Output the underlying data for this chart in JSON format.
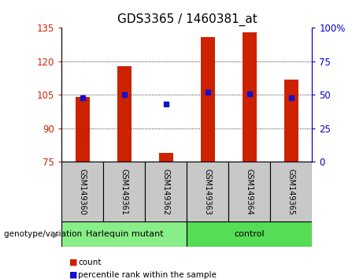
{
  "title": "GDS3365 / 1460381_at",
  "samples": [
    "GSM149360",
    "GSM149361",
    "GSM149362",
    "GSM149363",
    "GSM149364",
    "GSM149365"
  ],
  "count_values": [
    104,
    118,
    79,
    131,
    133,
    112
  ],
  "percentile_values": [
    48,
    50,
    43,
    52,
    51,
    48
  ],
  "ylim_left": [
    75,
    135
  ],
  "ylim_right": [
    0,
    100
  ],
  "yticks_left": [
    75,
    90,
    105,
    120,
    135
  ],
  "yticks_right": [
    0,
    25,
    50,
    75,
    100
  ],
  "ytick_labels_right": [
    "0",
    "25",
    "50",
    "75",
    "100%"
  ],
  "baseline": 75,
  "bar_color": "#cc2200",
  "dot_color": "#1111cc",
  "groups": [
    {
      "label": "Harlequin mutant",
      "indices": [
        0,
        1,
        2
      ],
      "color": "#88ee88"
    },
    {
      "label": "control",
      "indices": [
        3,
        4,
        5
      ],
      "color": "#55dd55"
    }
  ],
  "group_label": "genotype/variation",
  "legend_count_label": "count",
  "legend_percentile_label": "percentile rank within the sample",
  "left_axis_color": "#cc2200",
  "right_axis_color": "#0000cc",
  "sample_cell_color": "#c8c8c8",
  "title_fontsize": 11,
  "tick_fontsize": 8.5,
  "bar_width": 0.35
}
